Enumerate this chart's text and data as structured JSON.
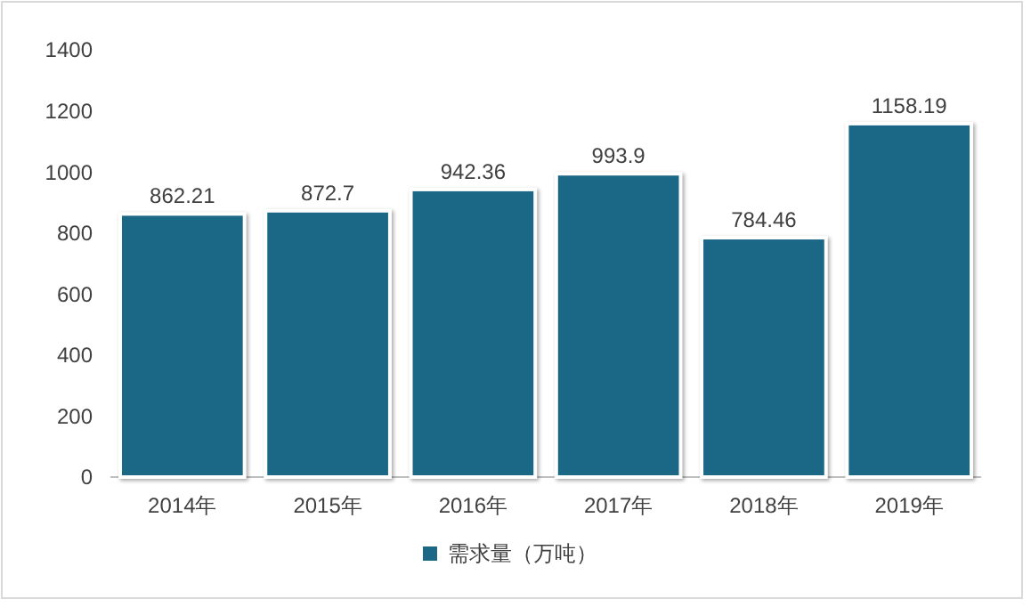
{
  "chart_data": {
    "type": "bar",
    "categories": [
      "2014年",
      "2015年",
      "2016年",
      "2017年",
      "2018年",
      "2019年"
    ],
    "series": [
      {
        "name": "需求量（万吨）",
        "color": "#1b6786",
        "values": [
          862.21,
          872.7,
          942.36,
          993.9,
          784.46,
          1158.19
        ]
      }
    ],
    "ylim": [
      0,
      1400
    ],
    "yticks": [
      0,
      200,
      400,
      600,
      800,
      1000,
      1200,
      1400
    ],
    "grid": false,
    "legend": "bottom",
    "data_labels": true
  }
}
